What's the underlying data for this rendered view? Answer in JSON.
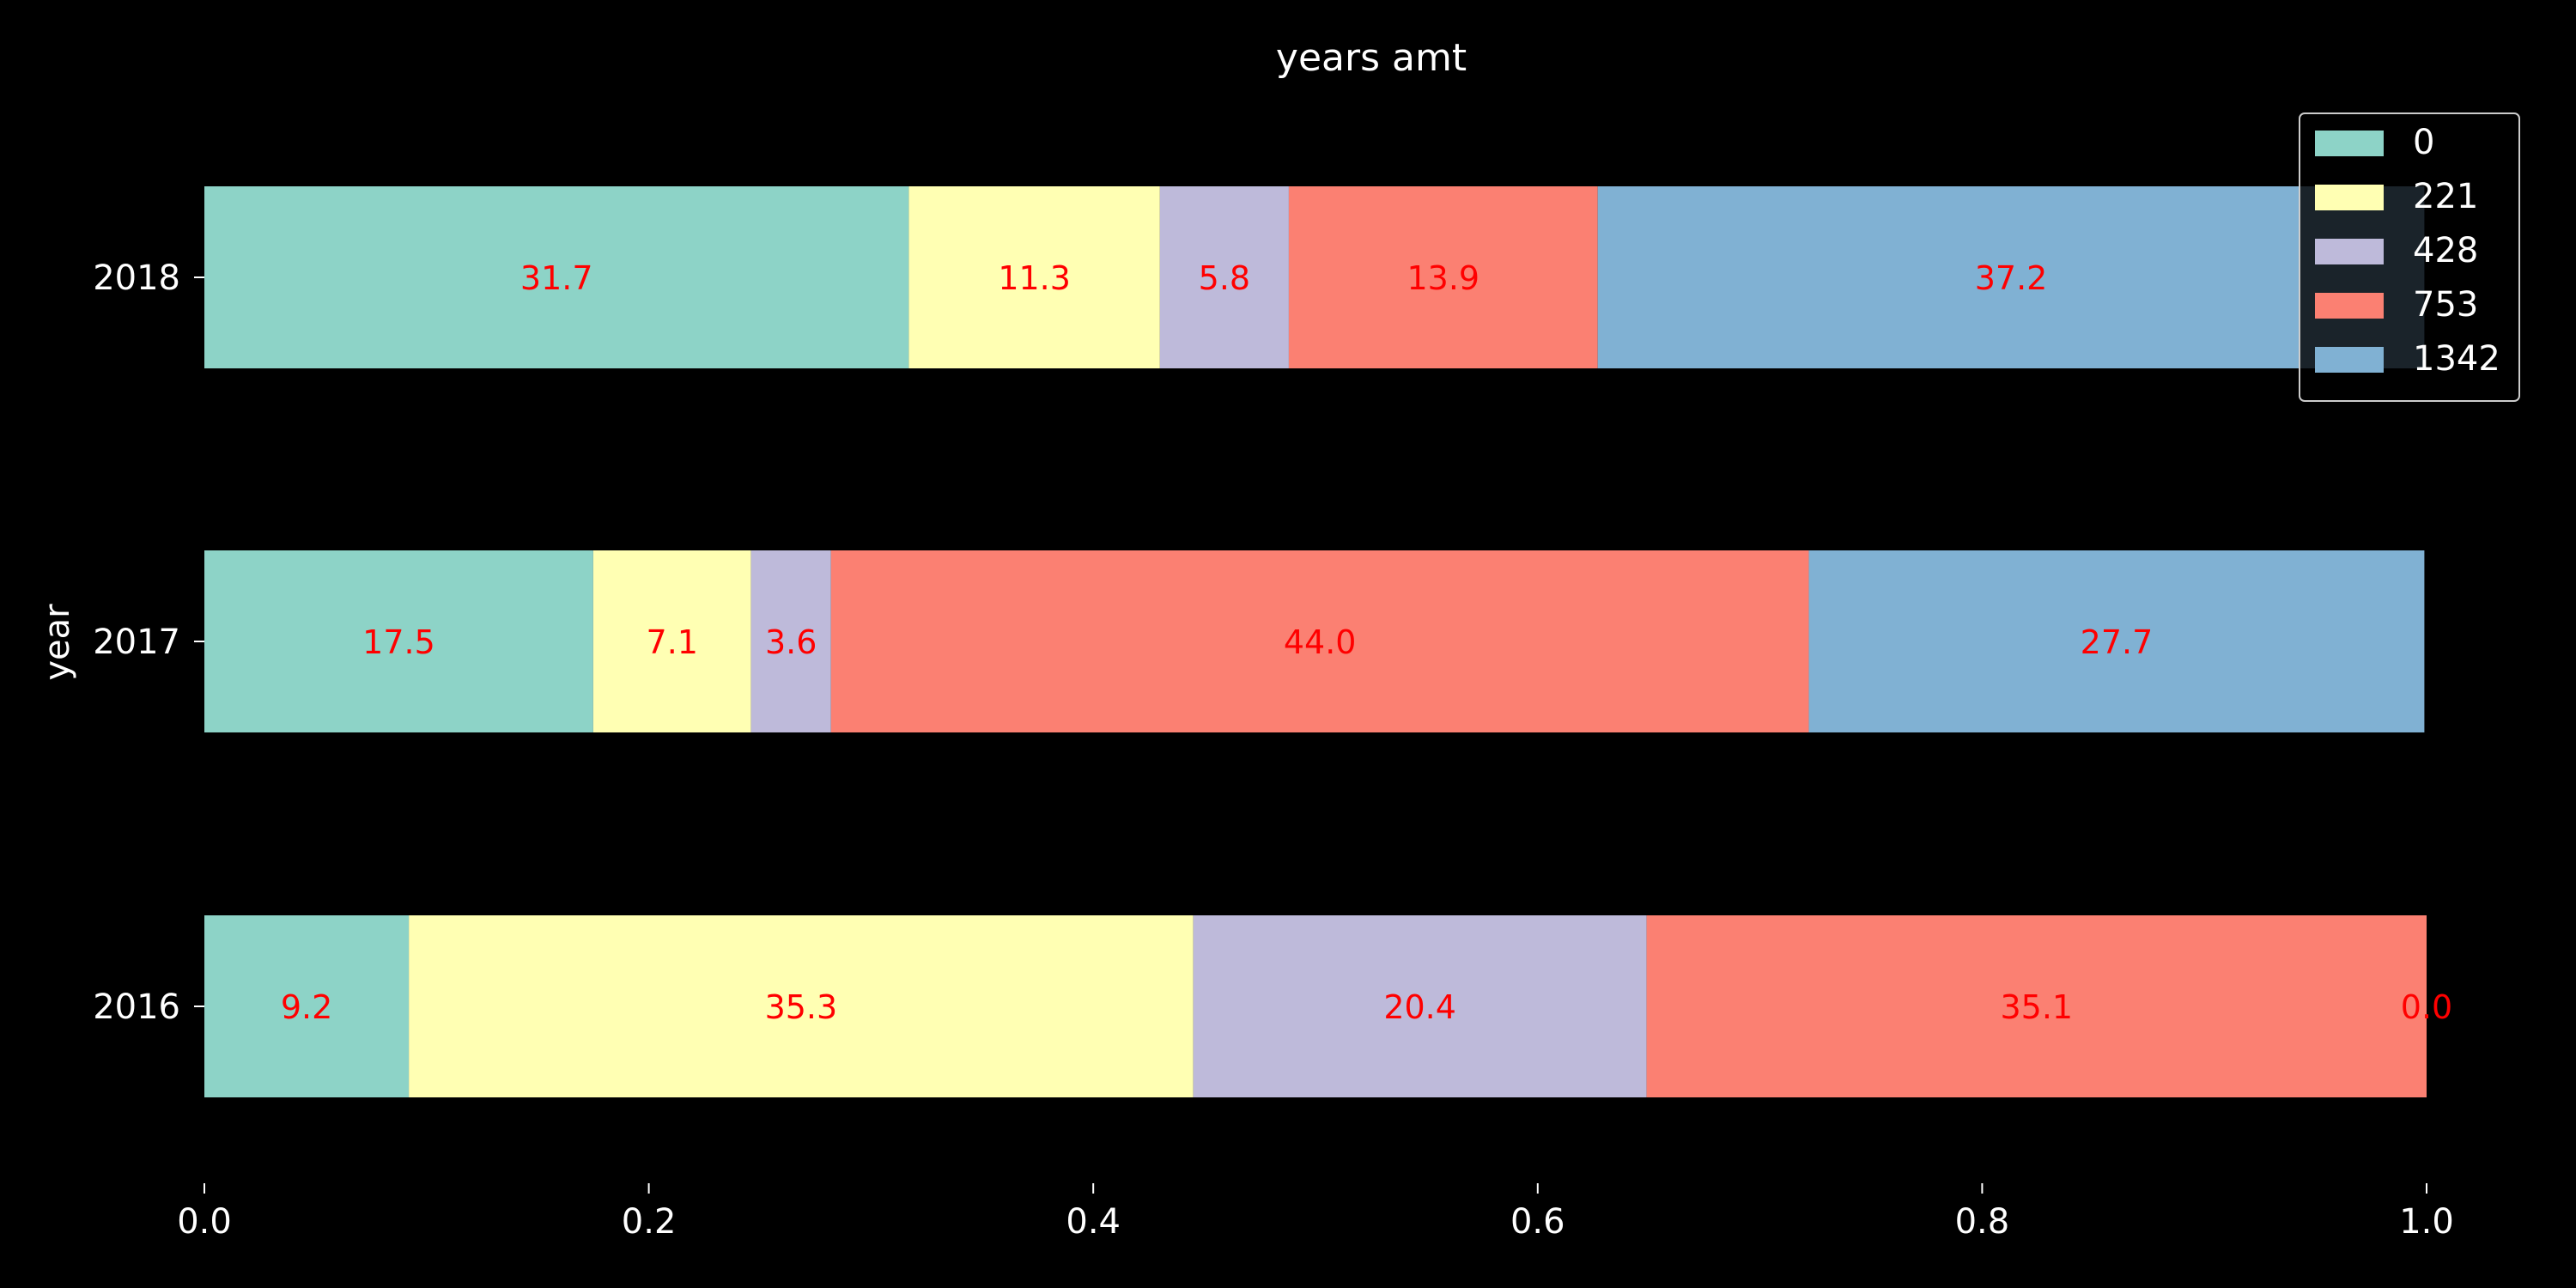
{
  "chart_data": {
    "type": "bar",
    "orientation": "horizontal",
    "stacked": true,
    "normalized": true,
    "title": "years amt",
    "xlabel": "",
    "ylabel": "year",
    "xlim": [
      0,
      1
    ],
    "xticks": [
      0.0,
      0.2,
      0.4,
      0.6,
      0.8,
      1.0
    ],
    "xtick_labels": [
      "0.0",
      "0.2",
      "0.4",
      "0.6",
      "0.8",
      "1.0"
    ],
    "grid": false,
    "legend_position": "top-right",
    "categories": [
      "2016",
      "2017",
      "2018"
    ],
    "series": [
      {
        "name": "0",
        "color": "#8dd3c7",
        "values": [
          0.092,
          0.175,
          0.317
        ]
      },
      {
        "name": "221",
        "color": "#ffffb3",
        "values": [
          0.353,
          0.071,
          0.113
        ]
      },
      {
        "name": "428",
        "color": "#bebada",
        "values": [
          0.204,
          0.036,
          0.058
        ]
      },
      {
        "name": "753",
        "color": "#fb8072",
        "values": [
          0.351,
          0.44,
          0.139
        ]
      },
      {
        "name": "1342",
        "color": "#80b1d3",
        "values": [
          0.0,
          0.277,
          0.372
        ]
      }
    ],
    "data_labels": [
      {
        "category": "2016",
        "series": "0",
        "text": "9.2"
      },
      {
        "category": "2016",
        "series": "221",
        "text": "35.3"
      },
      {
        "category": "2016",
        "series": "428",
        "text": "20.4"
      },
      {
        "category": "2016",
        "series": "753",
        "text": "35.1"
      },
      {
        "category": "2016",
        "series": "1342",
        "text": "0.0"
      },
      {
        "category": "2017",
        "series": "0",
        "text": "17.5"
      },
      {
        "category": "2017",
        "series": "221",
        "text": "7.1"
      },
      {
        "category": "2017",
        "series": "428",
        "text": "3.6"
      },
      {
        "category": "2017",
        "series": "753",
        "text": "44.0"
      },
      {
        "category": "2017",
        "series": "1342",
        "text": "27.7"
      },
      {
        "category": "2018",
        "series": "0",
        "text": "31.7"
      },
      {
        "category": "2018",
        "series": "221",
        "text": "11.3"
      },
      {
        "category": "2018",
        "series": "428",
        "text": "5.8"
      },
      {
        "category": "2018",
        "series": "753",
        "text": "13.9"
      },
      {
        "category": "2018",
        "series": "1342",
        "text": "37.2"
      }
    ],
    "label_color": "#ff0000",
    "text_color": "#ffffff",
    "background": "#000000"
  }
}
